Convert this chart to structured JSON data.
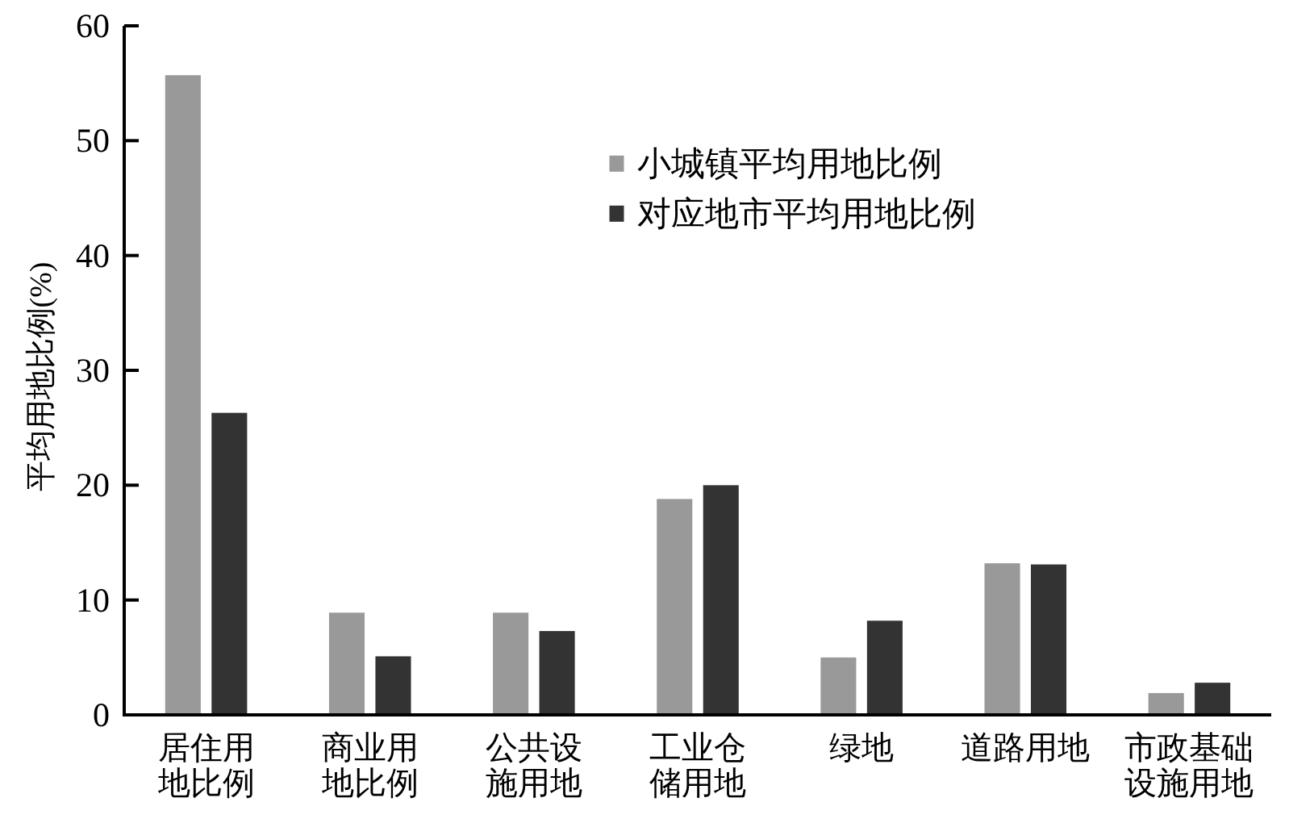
{
  "chart_data": {
    "type": "bar",
    "ylabel": "平均用地比例(%)",
    "categories": [
      "居住用地比例",
      "商业用地比例",
      "公共设施用地",
      "工业仓储用地",
      "绿地",
      "道路用地",
      "市政基础设施用地"
    ],
    "series": [
      {
        "name": "小城镇平均用地比例",
        "color": "#999999",
        "values": [
          55.7,
          8.9,
          8.9,
          18.8,
          5.0,
          13.2,
          1.9
        ]
      },
      {
        "name": "对应地市平均用地比例",
        "color": "#333333",
        "values": [
          26.3,
          5.1,
          7.3,
          20.0,
          8.2,
          13.1,
          2.8
        ]
      }
    ],
    "ylim": [
      0,
      60
    ],
    "yticks": [
      0,
      10,
      20,
      30,
      40,
      50,
      60
    ],
    "legend": "top"
  }
}
